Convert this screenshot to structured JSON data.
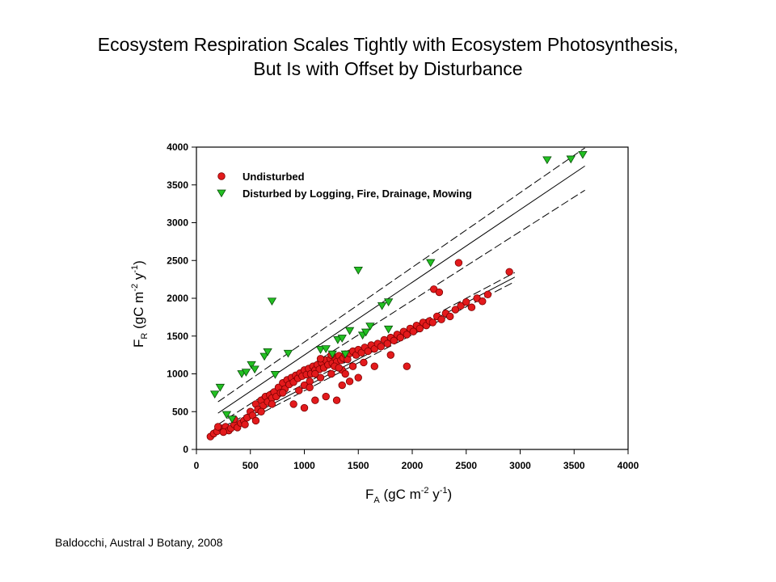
{
  "title_line1": "Ecosystem Respiration Scales Tightly with Ecosystem Photosynthesis,",
  "title_line2": "But Is with Offset by Disturbance",
  "credit": "Baldocchi, Austral J Botany, 2008",
  "chart_data": {
    "type": "scatter",
    "xlabel": {
      "main": "F",
      "sub": "A",
      "rest": " (gC m",
      "sup1": "-2",
      "mid": " y",
      "sup2": "-1",
      "end": ")"
    },
    "ylabel": {
      "main": "F",
      "sub": "R",
      "rest": " (gC m",
      "sup1": "-2",
      "mid": " y",
      "sup2": "-1",
      "end": ")"
    },
    "xlim": [
      0,
      4000
    ],
    "ylim": [
      0,
      4000
    ],
    "xticks": [
      0,
      500,
      1000,
      1500,
      2000,
      2500,
      3000,
      3500,
      4000
    ],
    "yticks": [
      0,
      500,
      1000,
      1500,
      2000,
      2500,
      3000,
      3500,
      4000
    ],
    "legend_position": "top-left",
    "series": [
      {
        "name": "Undisturbed",
        "marker": "circle",
        "color": "#e31a1c",
        "points": [
          [
            130,
            170
          ],
          [
            160,
            210
          ],
          [
            190,
            240
          ],
          [
            230,
            280
          ],
          [
            250,
            260
          ],
          [
            270,
            300
          ],
          [
            300,
            250
          ],
          [
            320,
            280
          ],
          [
            350,
            330
          ],
          [
            380,
            290
          ],
          [
            410,
            350
          ],
          [
            440,
            380
          ],
          [
            470,
            420
          ],
          [
            500,
            500
          ],
          [
            520,
            450
          ],
          [
            550,
            600
          ],
          [
            570,
            530
          ],
          [
            600,
            650
          ],
          [
            620,
            580
          ],
          [
            640,
            700
          ],
          [
            660,
            630
          ],
          [
            680,
            720
          ],
          [
            700,
            680
          ],
          [
            720,
            760
          ],
          [
            740,
            700
          ],
          [
            760,
            820
          ],
          [
            780,
            750
          ],
          [
            800,
            880
          ],
          [
            820,
            800
          ],
          [
            840,
            920
          ],
          [
            860,
            860
          ],
          [
            880,
            950
          ],
          [
            900,
            890
          ],
          [
            920,
            980
          ],
          [
            940,
            940
          ],
          [
            960,
            1010
          ],
          [
            980,
            970
          ],
          [
            1000,
            1050
          ],
          [
            1020,
            990
          ],
          [
            1040,
            1070
          ],
          [
            1060,
            1000
          ],
          [
            1080,
            1100
          ],
          [
            1100,
            1050
          ],
          [
            1120,
            1120
          ],
          [
            1140,
            1060
          ],
          [
            1160,
            1150
          ],
          [
            1180,
            1080
          ],
          [
            1200,
            1180
          ],
          [
            1220,
            1120
          ],
          [
            1240,
            1200
          ],
          [
            1260,
            1140
          ],
          [
            1280,
            1220
          ],
          [
            1300,
            1160
          ],
          [
            1320,
            1240
          ],
          [
            1340,
            1180
          ],
          [
            1360,
            1210
          ],
          [
            1380,
            1260
          ],
          [
            1400,
            1190
          ],
          [
            1420,
            1270
          ],
          [
            1450,
            1300
          ],
          [
            1480,
            1250
          ],
          [
            1500,
            1320
          ],
          [
            1530,
            1280
          ],
          [
            1560,
            1350
          ],
          [
            1590,
            1300
          ],
          [
            1620,
            1380
          ],
          [
            1650,
            1330
          ],
          [
            1680,
            1400
          ],
          [
            1710,
            1360
          ],
          [
            1740,
            1450
          ],
          [
            1770,
            1400
          ],
          [
            1800,
            1480
          ],
          [
            1830,
            1440
          ],
          [
            1860,
            1520
          ],
          [
            1890,
            1480
          ],
          [
            1920,
            1560
          ],
          [
            1950,
            1520
          ],
          [
            1980,
            1600
          ],
          [
            2010,
            1560
          ],
          [
            2040,
            1640
          ],
          [
            2070,
            1600
          ],
          [
            2100,
            1680
          ],
          [
            2130,
            1640
          ],
          [
            2160,
            1700
          ],
          [
            2190,
            1680
          ],
          [
            2230,
            1760
          ],
          [
            2270,
            1720
          ],
          [
            2310,
            1800
          ],
          [
            2350,
            1760
          ],
          [
            2400,
            1850
          ],
          [
            2450,
            1900
          ],
          [
            2500,
            1950
          ],
          [
            2550,
            1880
          ],
          [
            2600,
            2000
          ],
          [
            2650,
            1960
          ],
          [
            2700,
            2050
          ],
          [
            2900,
            2350
          ],
          [
            2430,
            2470
          ],
          [
            2200,
            2120
          ],
          [
            2250,
            2080
          ],
          [
            1950,
            1100
          ],
          [
            1800,
            1250
          ],
          [
            1650,
            1100
          ],
          [
            1500,
            950
          ],
          [
            1350,
            850
          ],
          [
            1300,
            650
          ],
          [
            1200,
            700
          ],
          [
            1000,
            550
          ],
          [
            1100,
            650
          ],
          [
            900,
            600
          ],
          [
            800,
            750
          ],
          [
            700,
            600
          ],
          [
            600,
            500
          ],
          [
            550,
            380
          ],
          [
            450,
            330
          ],
          [
            350,
            400
          ],
          [
            250,
            230
          ],
          [
            200,
            300
          ],
          [
            1050,
            900
          ],
          [
            1150,
            950
          ],
          [
            1250,
            1000
          ],
          [
            1350,
            1050
          ],
          [
            1450,
            1100
          ],
          [
            1550,
            1150
          ],
          [
            1150,
            1200
          ],
          [
            1250,
            1250
          ],
          [
            1280,
            1100
          ],
          [
            1320,
            1080
          ],
          [
            1380,
            1000
          ],
          [
            1420,
            900
          ],
          [
            1100,
            1000
          ],
          [
            1000,
            850
          ],
          [
            950,
            780
          ],
          [
            1050,
            820
          ]
        ]
      },
      {
        "name": "Disturbed by Logging, Fire, Drainage, Mowing",
        "marker": "triangle-down",
        "color": "#22c022",
        "points": [
          [
            170,
            730
          ],
          [
            220,
            820
          ],
          [
            280,
            460
          ],
          [
            330,
            400
          ],
          [
            420,
            1000
          ],
          [
            460,
            1020
          ],
          [
            510,
            1120
          ],
          [
            540,
            1060
          ],
          [
            630,
            1230
          ],
          [
            660,
            1290
          ],
          [
            700,
            1960
          ],
          [
            730,
            990
          ],
          [
            850,
            1270
          ],
          [
            1150,
            1320
          ],
          [
            1200,
            1330
          ],
          [
            1260,
            1260
          ],
          [
            1310,
            1450
          ],
          [
            1350,
            1470
          ],
          [
            1380,
            1260
          ],
          [
            1420,
            1570
          ],
          [
            1500,
            2370
          ],
          [
            1540,
            1510
          ],
          [
            1570,
            1550
          ],
          [
            1610,
            1630
          ],
          [
            1720,
            1900
          ],
          [
            1780,
            1950
          ],
          [
            1780,
            1590
          ],
          [
            2170,
            2470
          ],
          [
            3250,
            3830
          ],
          [
            3470,
            3840
          ],
          [
            3580,
            3900
          ]
        ]
      }
    ],
    "lines": [
      {
        "name": "disturbed-fit",
        "style": "solid",
        "x": [
          200,
          3600
        ],
        "y": [
          480,
          3750
        ]
      },
      {
        "name": "disturbed-ci-upper",
        "style": "dashed",
        "x": [
          200,
          3600
        ],
        "y": [
          630,
          3990
        ]
      },
      {
        "name": "disturbed-ci-lower",
        "style": "dashed",
        "x": [
          200,
          3600
        ],
        "y": [
          330,
          3430
        ]
      },
      {
        "name": "undisturbed-fit",
        "style": "solid",
        "x": [
          250,
          2950
        ],
        "y": [
          260,
          2280
        ]
      },
      {
        "name": "undisturbed-ci-upper",
        "style": "dashed",
        "x": [
          250,
          2950
        ],
        "y": [
          300,
          2340
        ]
      },
      {
        "name": "undisturbed-ci-lower",
        "style": "dashed",
        "x": [
          250,
          2950
        ],
        "y": [
          220,
          2220
        ]
      }
    ]
  }
}
